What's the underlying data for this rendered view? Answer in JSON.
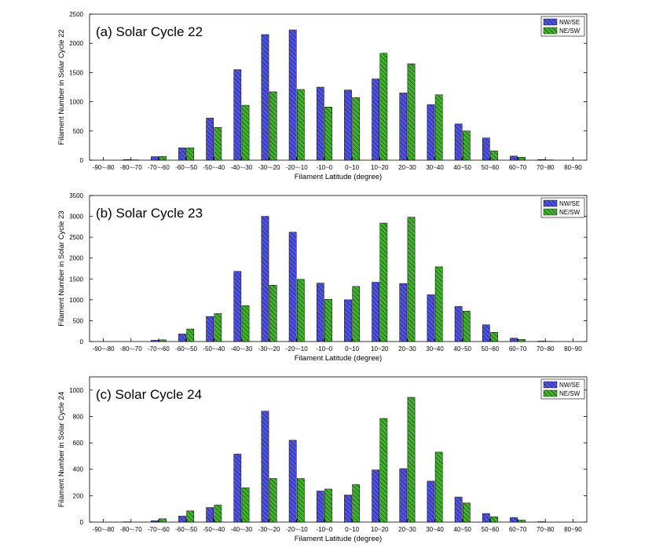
{
  "figure": {
    "colors": {
      "nw_se": "#4f52e6",
      "ne_sw": "#3fb52a",
      "hatch": "#1a1a1a"
    }
  },
  "chart_data": [
    {
      "type": "bar",
      "title": "(a) Solar Cycle 22",
      "xlabel": "Filament Latitude (degree)",
      "ylabel": "Filament Number in Solar Cycle 22",
      "ylim": [
        0,
        2500
      ],
      "yticks": [
        0,
        500,
        1000,
        1500,
        2000,
        2500
      ],
      "legend_position": "top-right",
      "categories": [
        "-90~-80",
        "-80~-70",
        "-70~-60",
        "-60~-50",
        "-50~-40",
        "-40~-30",
        "-30~-20",
        "-20~-10",
        "-10~0",
        "0~10",
        "10~20",
        "20~30",
        "30~40",
        "40~50",
        "50~60",
        "60~70",
        "70~80",
        "80~90"
      ],
      "series": [
        {
          "name": "NW/SE",
          "values": [
            0,
            10,
            60,
            210,
            720,
            1550,
            2150,
            2230,
            1250,
            1200,
            1390,
            1150,
            950,
            620,
            380,
            70,
            10,
            0
          ]
        },
        {
          "name": "NE/SW",
          "values": [
            0,
            5,
            65,
            210,
            560,
            940,
            1170,
            1210,
            910,
            1070,
            1830,
            1650,
            1120,
            500,
            160,
            50,
            5,
            0
          ]
        }
      ]
    },
    {
      "type": "bar",
      "title": "(b) Solar Cycle 23",
      "xlabel": "Filament Latitude (degree)",
      "ylabel": "Filament Number in Solar Cycle 23",
      "ylim": [
        0,
        3500
      ],
      "yticks": [
        0,
        500,
        1000,
        1500,
        2000,
        2500,
        3000,
        3500
      ],
      "legend_position": "top-right",
      "categories": [
        "-90~-80",
        "-80~-70",
        "-70~-60",
        "-60~-50",
        "-50~-40",
        "-40~-30",
        "-30~-20",
        "-20~-10",
        "-10~0",
        "0~10",
        "10~20",
        "20~30",
        "30~40",
        "40~50",
        "50~60",
        "60~70",
        "70~80",
        "80~90"
      ],
      "series": [
        {
          "name": "NW/SE",
          "values": [
            0,
            0,
            30,
            180,
            600,
            1680,
            3000,
            2620,
            1400,
            1000,
            1420,
            1390,
            1120,
            840,
            400,
            80,
            10,
            0
          ]
        },
        {
          "name": "NE/SW",
          "values": [
            0,
            0,
            40,
            300,
            670,
            860,
            1350,
            1490,
            1010,
            1320,
            2840,
            2980,
            1790,
            730,
            220,
            50,
            5,
            0
          ]
        }
      ]
    },
    {
      "type": "bar",
      "title": "(c) Solar Cycle 24",
      "xlabel": "Filament Latitude (degree)",
      "ylabel": "Filament Number in Solar Cycle 24",
      "ylim": [
        0,
        1100
      ],
      "yticks": [
        0,
        200,
        400,
        600,
        800,
        1000
      ],
      "legend_position": "top-right",
      "categories": [
        "-90~-80",
        "-80~-70",
        "-70~-60",
        "-60~-50",
        "-50~-40",
        "-40~-30",
        "-30~-20",
        "-20~-10",
        "-10~0",
        "0~10",
        "10~20",
        "20~30",
        "30~40",
        "40~50",
        "50~60",
        "60~70",
        "70~80",
        "80~90"
      ],
      "series": [
        {
          "name": "NW/SE",
          "values": [
            0,
            2,
            10,
            45,
            110,
            515,
            840,
            620,
            235,
            205,
            395,
            405,
            310,
            190,
            65,
            35,
            3,
            0
          ]
        },
        {
          "name": "NE/SW",
          "values": [
            0,
            0,
            25,
            85,
            130,
            260,
            330,
            330,
            250,
            285,
            785,
            945,
            530,
            145,
            40,
            15,
            0,
            0
          ]
        }
      ]
    }
  ]
}
